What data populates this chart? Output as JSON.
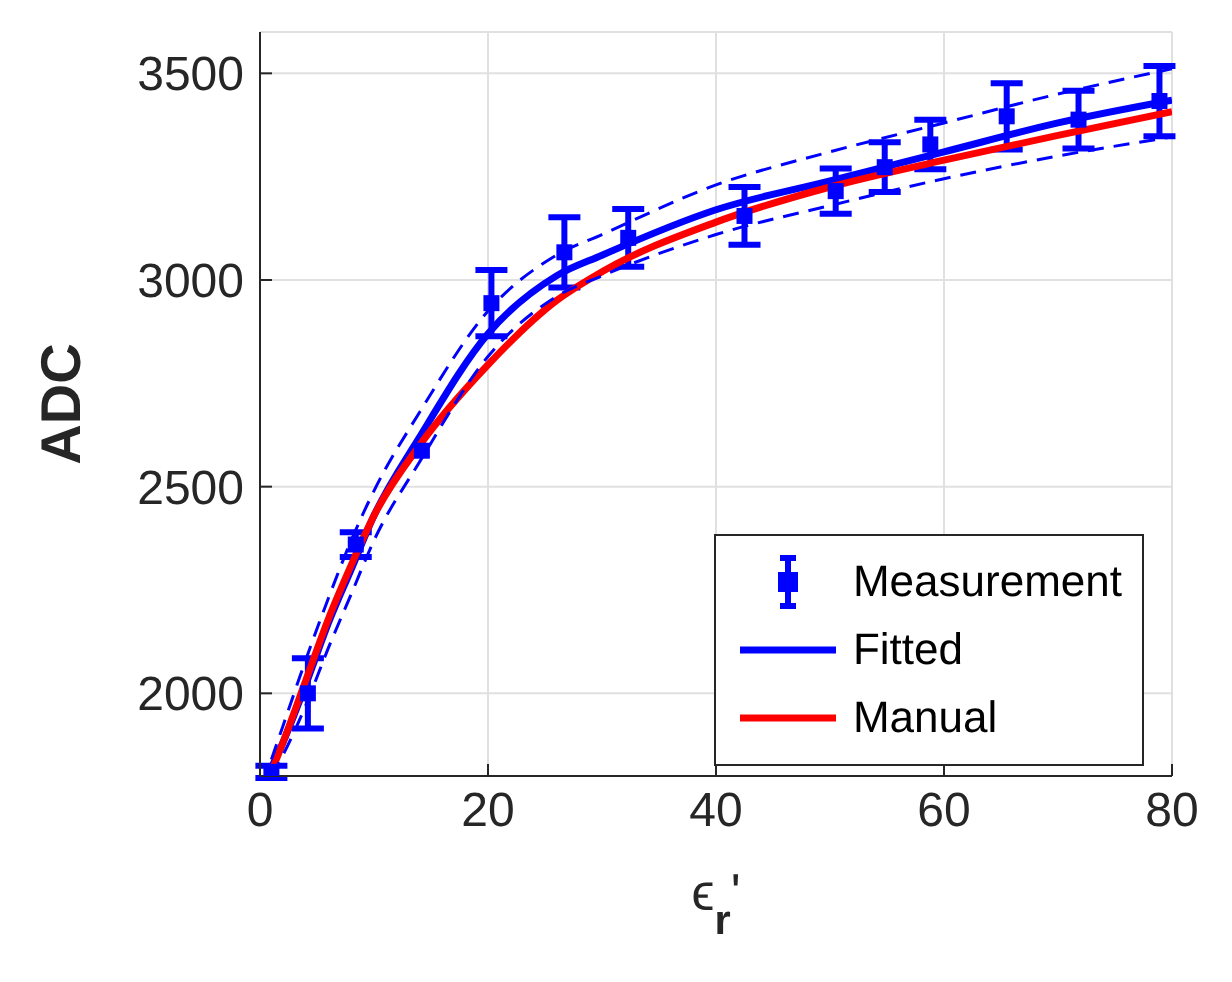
{
  "chart_data": {
    "type": "line",
    "xlabel": "ϵ$_{r}$'",
    "ylabel": "ADC",
    "xlim": [
      0,
      80
    ],
    "ylim": [
      1800,
      3600
    ],
    "xticks": [
      0,
      20,
      40,
      60,
      80
    ],
    "yticks": [
      2000,
      2500,
      3000,
      3500
    ],
    "grid": true,
    "legend": "bottom right",
    "line_style": "solid",
    "series": [
      {
        "name": "Measurement",
        "type": "scatter",
        "marker": "square",
        "color": "#0000ff",
        "x": [
          1,
          4.2,
          8.4,
          14.2,
          20.3,
          26.7,
          32.3,
          42.5,
          50.5,
          54.8,
          58.8,
          65.5,
          71.8,
          78.9
        ],
        "values": [
          1810,
          2000,
          2360,
          2587,
          2944,
          3067,
          3102,
          3155,
          3215,
          3273,
          3328,
          3396,
          3388,
          3433
        ],
        "errors": [
          15,
          85,
          30,
          null,
          80,
          85,
          70,
          70,
          55,
          60,
          60,
          80,
          70,
          85
        ]
      },
      {
        "name": "Fitted",
        "color": "#0000ff",
        "x": [
          1,
          2,
          4,
          6,
          8,
          10,
          14,
          20,
          26,
          30,
          40,
          50,
          60,
          70,
          80
        ],
        "values": [
          1820,
          1880,
          2020,
          2170,
          2300,
          2430,
          2620,
          2870,
          3010,
          3060,
          3170,
          3240,
          3310,
          3380,
          3435
        ]
      },
      {
        "name": "Manual",
        "color": "#ff0000",
        "x": [
          1,
          2,
          4,
          6,
          8,
          10,
          14,
          20,
          26,
          30,
          40,
          50,
          60,
          70,
          80
        ],
        "values": [
          1810,
          1880,
          2030,
          2180,
          2310,
          2430,
          2600,
          2795,
          2950,
          3020,
          3140,
          3225,
          3290,
          3350,
          3407
        ]
      },
      {
        "line_style": "dashed",
        "color": "#0000ff",
        "x": [
          1,
          2,
          4,
          6,
          8,
          10,
          14,
          20,
          26,
          30,
          40,
          50,
          60,
          70,
          80
        ],
        "values": [
          1800,
          1850,
          1970,
          2110,
          2240,
          2370,
          2560,
          2815,
          2960,
          3010,
          3110,
          3180,
          3245,
          3300,
          3346
        ]
      },
      {
        "line_style": "dashed",
        "color": "#0000ff",
        "x": [
          1,
          2,
          4,
          6,
          8,
          10,
          14,
          20,
          26,
          30,
          40,
          50,
          60,
          70,
          80
        ],
        "values": [
          1840,
          1920,
          2080,
          2230,
          2370,
          2490,
          2680,
          2925,
          3060,
          3110,
          3230,
          3310,
          3380,
          3450,
          3511
        ]
      }
    ]
  }
}
